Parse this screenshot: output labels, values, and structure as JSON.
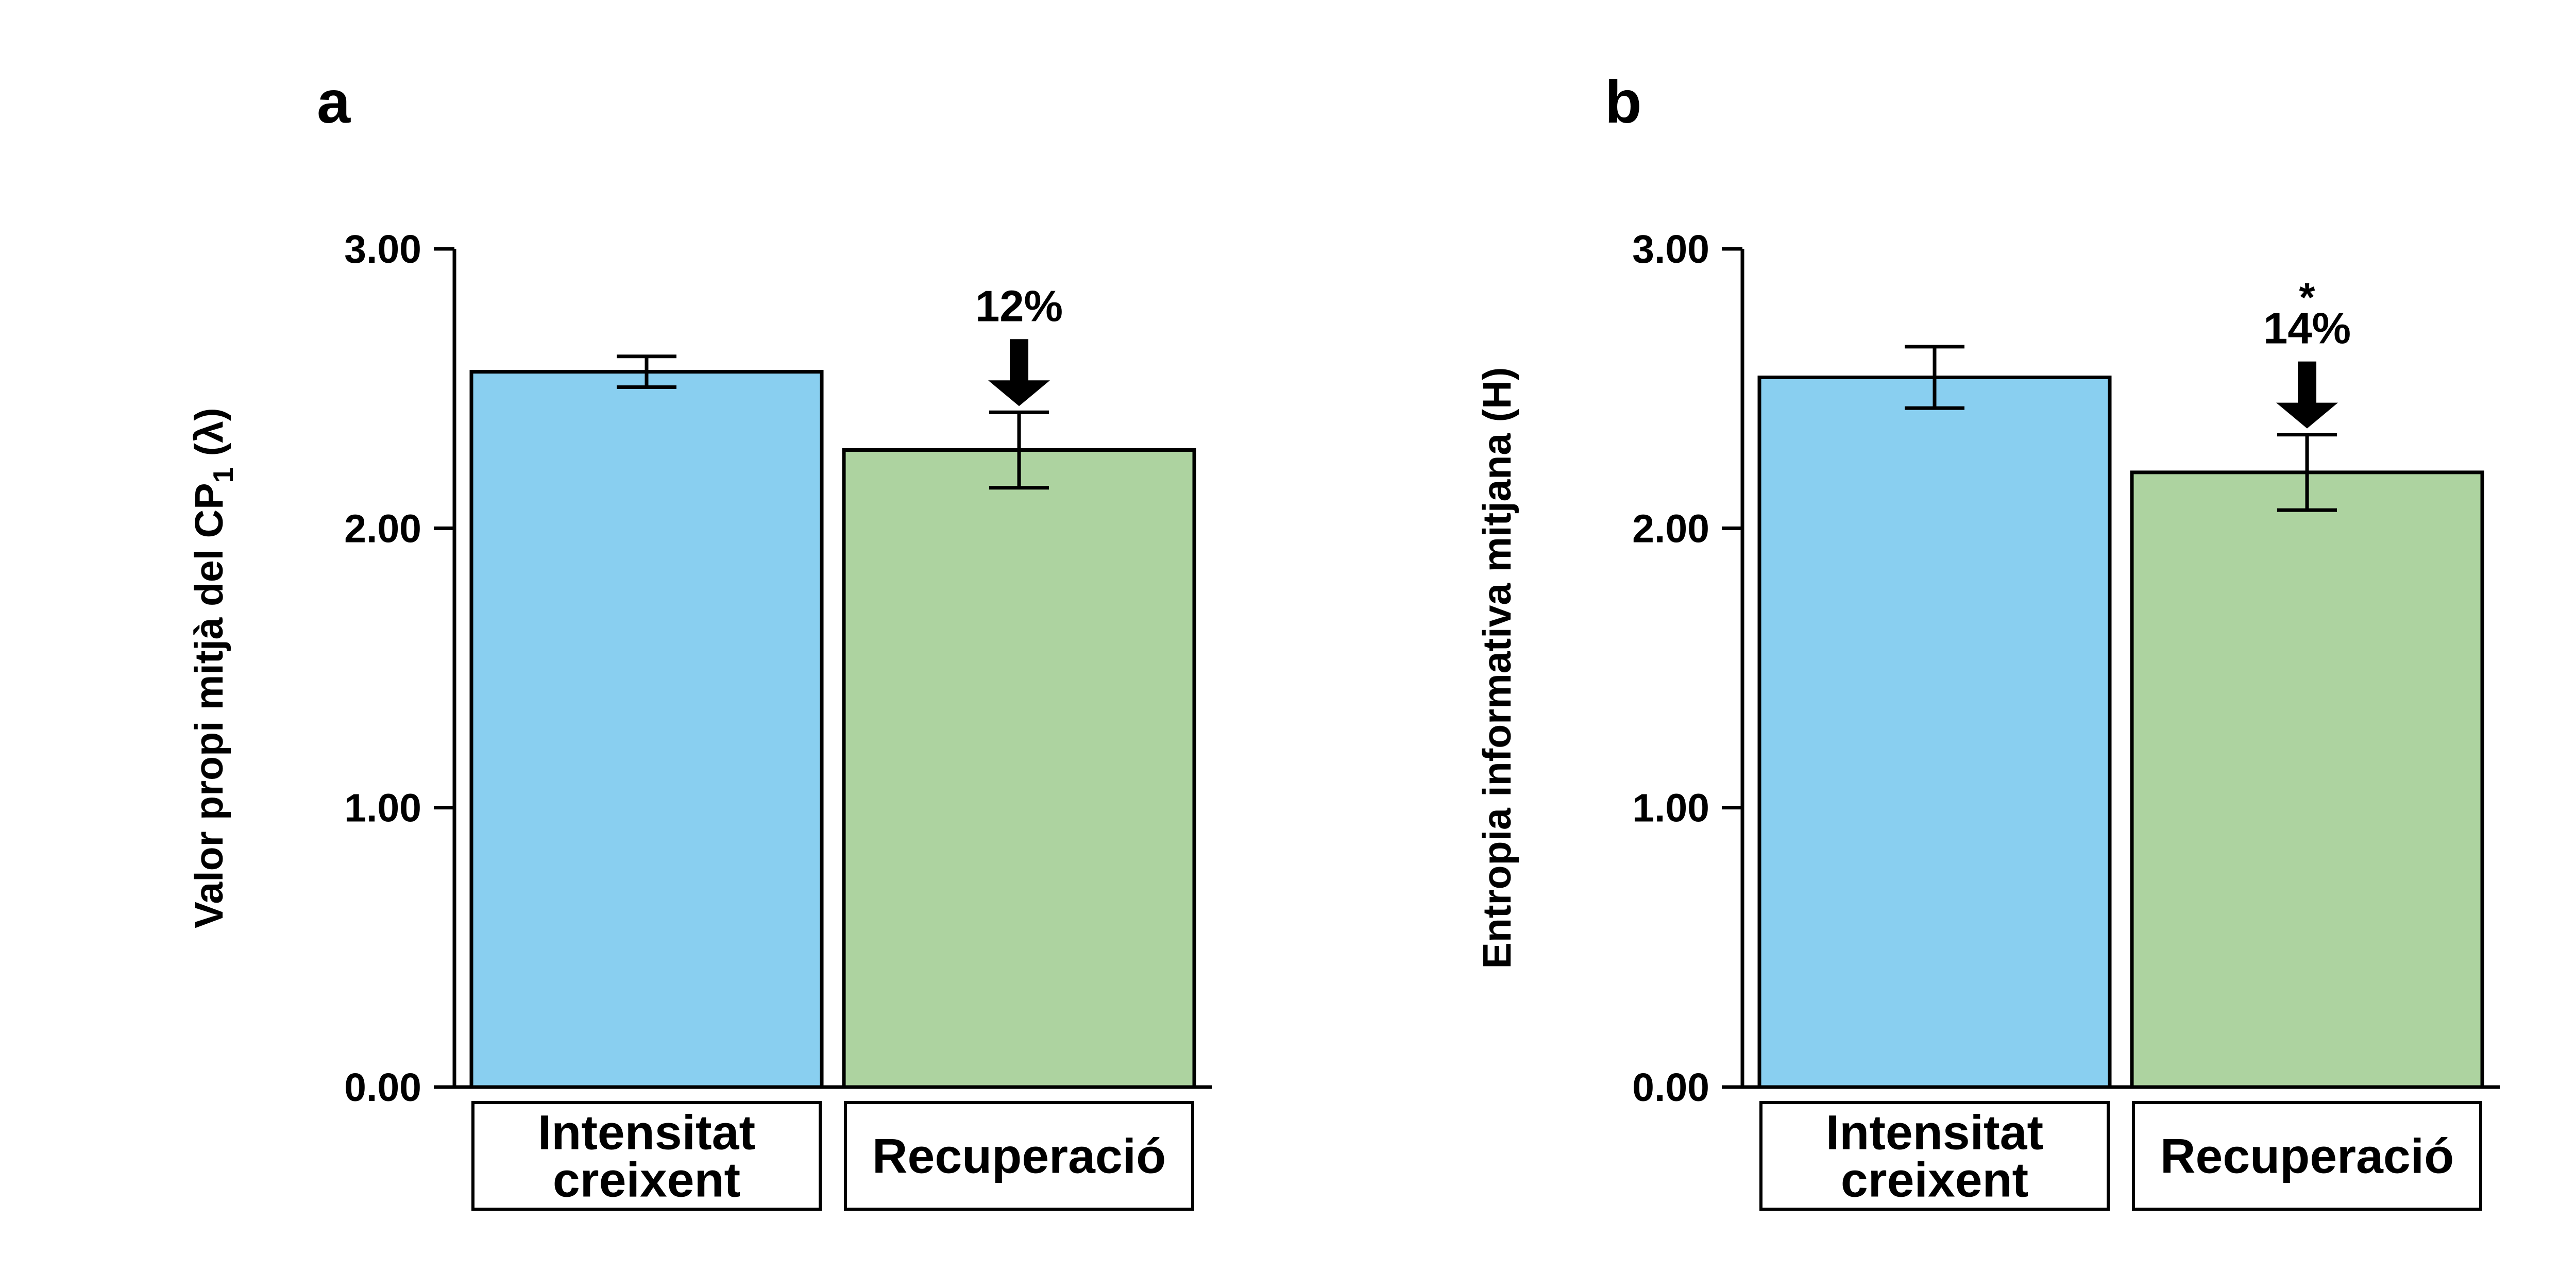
{
  "chart_data": [
    {
      "type": "bar",
      "panel_label": "a",
      "categories": [
        "Intensitat creixent",
        "Recuperació"
      ],
      "category_lines": [
        [
          "Intensitat",
          "creixent"
        ],
        [
          "Recuperació"
        ]
      ],
      "values": [
        2.56,
        2.28
      ],
      "error": [
        0.055,
        0.135
      ],
      "colors": [
        "#89CFF0",
        "#ADD3A0"
      ],
      "ylabel": "Valor propi mitjà del CP",
      "ylabel_subscript": "1",
      "ylabel_suffix": " (λ)",
      "ylim": [
        0,
        3
      ],
      "yticks": [
        "0.00",
        "1.00",
        "2.00",
        "3.00"
      ],
      "grid": false,
      "annotation": {
        "category_index": 1,
        "text": "12%",
        "star": "",
        "arrow": "down"
      }
    },
    {
      "type": "bar",
      "panel_label": "b",
      "categories": [
        "Intensitat creixent",
        "Recuperació"
      ],
      "category_lines": [
        [
          "Intensitat",
          "creixent"
        ],
        [
          "Recuperació"
        ]
      ],
      "values": [
        2.54,
        2.2
      ],
      "error": [
        0.11,
        0.135
      ],
      "colors": [
        "#89CFF0",
        "#ADD3A0"
      ],
      "ylabel": "Entropia informativa mitjana (H)",
      "ylabel_subscript": "",
      "ylabel_suffix": "",
      "ylim": [
        0,
        3
      ],
      "yticks": [
        "0.00",
        "1.00",
        "2.00",
        "3.00"
      ],
      "grid": false,
      "annotation": {
        "category_index": 1,
        "text": "14%",
        "star": "*",
        "arrow": "down"
      }
    }
  ]
}
